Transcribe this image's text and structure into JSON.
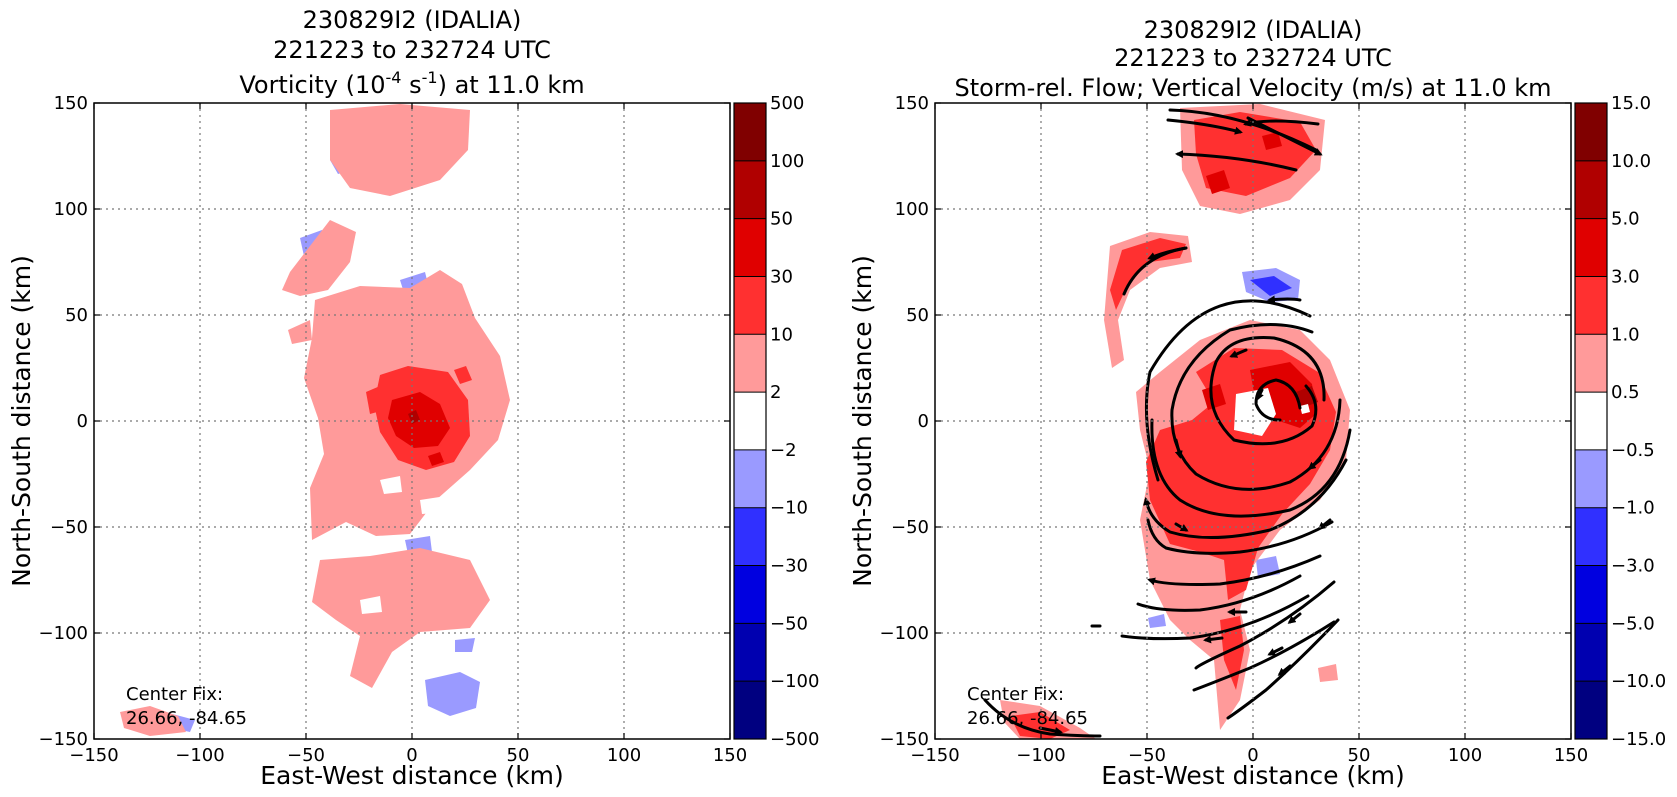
{
  "chart_data": [
    {
      "type": "heatmap",
      "title_lines": [
        "230829I2 (IDALIA)",
        "221223 to 232724 UTC"
      ],
      "title_line3": {
        "prefix": "Vorticity (10",
        "exp1": "-4",
        "mid": " s",
        "exp2": "-1",
        "suffix": ") at 11.0 km"
      },
      "xlabel": "East-West distance (km)",
      "ylabel": "North-South distance (km)",
      "xlim": [
        -150,
        150
      ],
      "ylim": [
        -150,
        150
      ],
      "x_ticks": [
        "−150",
        "−100",
        "−50",
        "0",
        "50",
        "100",
        "150"
      ],
      "y_ticks": [
        "150",
        "100",
        "50",
        "0",
        "−50",
        "−100",
        "−150"
      ],
      "grid": true,
      "center_fix_label": "Center Fix:",
      "center_fix_value": "26.66, -84.65",
      "colorbar_levels": [
        "500",
        "100",
        "50",
        "30",
        "10",
        "2",
        "−2",
        "−10",
        "−30",
        "−50",
        "−100",
        "−500"
      ],
      "colorbar_colors": [
        "#800000",
        "#b00000",
        "#e00000",
        "#ff3030",
        "#ff9a9a",
        "#ffffff",
        "#9a9aff",
        "#3030ff",
        "#0000e0",
        "#0000b0",
        "#000080"
      ]
    },
    {
      "type": "heatmap",
      "title_lines": [
        "230829I2 (IDALIA)",
        "221223 to 232724 UTC",
        "Storm-rel. Flow; Vertical Velocity (m/s) at 11.0 km"
      ],
      "xlabel": "East-West distance (km)",
      "ylabel": "North-South distance (km)",
      "xlim": [
        -150,
        150
      ],
      "ylim": [
        -150,
        150
      ],
      "x_ticks": [
        "−150",
        "−100",
        "−50",
        "0",
        "50",
        "100",
        "150"
      ],
      "y_ticks": [
        "150",
        "100",
        "50",
        "0",
        "−50",
        "−100",
        "−150"
      ],
      "grid": true,
      "center_fix_label": "Center Fix:",
      "center_fix_value": "26.66, -84.65",
      "colorbar_levels": [
        "15.0",
        "10.0",
        "5.0",
        "3.0",
        "1.0",
        "0.5",
        "−0.5",
        "−1.0",
        "−3.0",
        "−5.0",
        "−10.0",
        "−15.0"
      ],
      "colorbar_colors": [
        "#800000",
        "#b00000",
        "#e00000",
        "#ff3030",
        "#ff9a9a",
        "#ffffff",
        "#9a9aff",
        "#3030ff",
        "#0000e0",
        "#0000b0",
        "#000080"
      ]
    }
  ]
}
